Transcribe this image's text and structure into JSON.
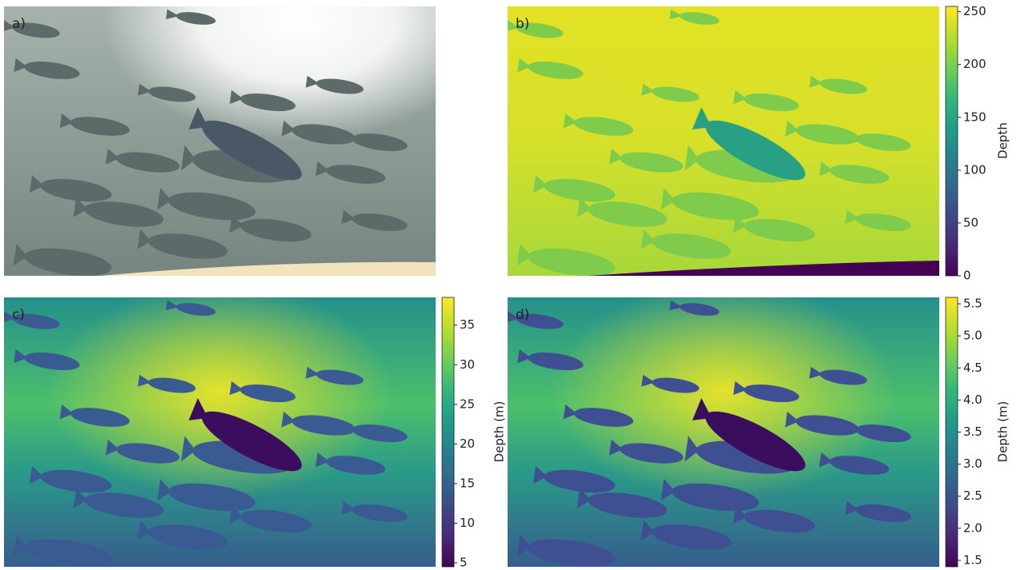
{
  "panels": [
    {
      "label": "a)"
    },
    {
      "label": "b)",
      "colorbar": {
        "label": "Depth",
        "lim": [
          0,
          255
        ],
        "ticks": [
          0,
          50,
          100,
          150,
          200,
          250
        ]
      }
    },
    {
      "label": "c)",
      "colorbar": {
        "label": "Depth (m)",
        "lim": [
          4.5,
          38.5
        ],
        "ticks": [
          5,
          10,
          15,
          20,
          25,
          30,
          35
        ]
      }
    },
    {
      "label": "d)",
      "colorbar": {
        "label": "Depth (m)",
        "lim": [
          1.4,
          5.6
        ],
        "ticks": [
          1.5,
          {
            "value": 2,
            "label": "2.0"
          },
          2.5,
          {
            "value": 3,
            "label": "3.0"
          },
          3.5,
          {
            "value": 4,
            "label": "4.0"
          },
          4.5,
          {
            "value": 5,
            "label": "5.0"
          },
          5.5
        ]
      }
    }
  ]
}
